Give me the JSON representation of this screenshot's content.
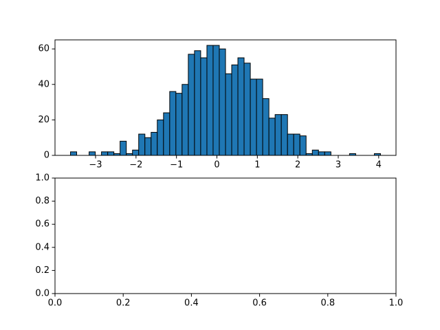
{
  "chart_data": [
    {
      "type": "histogram",
      "color": "#1f77b4",
      "edgecolor": "#000000",
      "bins": [
        -3.62,
        -3.467,
        -3.313,
        -3.16,
        -3.007,
        -2.854,
        -2.7,
        -2.547,
        -2.394,
        -2.24,
        -2.087,
        -1.934,
        -1.78,
        -1.627,
        -1.474,
        -1.32,
        -1.167,
        -1.014,
        -0.861,
        -0.707,
        -0.554,
        -0.401,
        -0.247,
        -0.094,
        0.059,
        0.213,
        0.366,
        0.519,
        0.672,
        0.826,
        0.979,
        1.132,
        1.286,
        1.439,
        1.592,
        1.746,
        1.899,
        2.052,
        2.205,
        2.359,
        2.512,
        2.665,
        2.819,
        2.972,
        3.125,
        3.279,
        3.432,
        3.585,
        3.738,
        3.892,
        4.045
      ],
      "values": [
        2,
        0,
        0,
        2,
        0,
        2,
        2,
        1,
        8,
        1,
        3,
        12,
        10,
        13,
        20,
        24,
        36,
        35,
        40,
        57,
        59,
        55,
        62,
        62,
        60,
        46,
        51,
        55,
        52,
        43,
        43,
        32,
        21,
        23,
        23,
        12,
        12,
        11,
        1,
        3,
        2,
        2,
        0,
        0,
        0,
        1,
        0,
        0,
        0,
        1
      ],
      "xlim": [
        -4.003,
        4.428
      ],
      "xticks": [
        {
          "value": -3,
          "label": "−3"
        },
        {
          "value": -2,
          "label": "−2"
        },
        {
          "value": -1,
          "label": "−1"
        },
        0,
        1,
        2,
        3,
        4
      ],
      "ylim": [
        0,
        65.1
      ],
      "yticks": [
        0,
        20,
        40,
        60
      ]
    },
    {
      "type": "blank",
      "xlim": [
        0,
        1
      ],
      "xticks": [
        {
          "value": 0,
          "label": "0.0"
        },
        {
          "value": 0.2,
          "label": "0.2"
        },
        {
          "value": 0.4,
          "label": "0.4"
        },
        {
          "value": 0.6,
          "label": "0.6"
        },
        {
          "value": 0.8,
          "label": "0.8"
        },
        {
          "value": 1,
          "label": "1.0"
        }
      ],
      "ylim": [
        0,
        1
      ],
      "yticks": [
        {
          "value": 0,
          "label": "0.0"
        },
        {
          "value": 0.2,
          "label": "0.2"
        },
        {
          "value": 0.4,
          "label": "0.4"
        },
        {
          "value": 0.6,
          "label": "0.6"
        },
        {
          "value": 0.8,
          "label": "0.8"
        },
        {
          "value": 1,
          "label": "1.0"
        }
      ]
    }
  ]
}
